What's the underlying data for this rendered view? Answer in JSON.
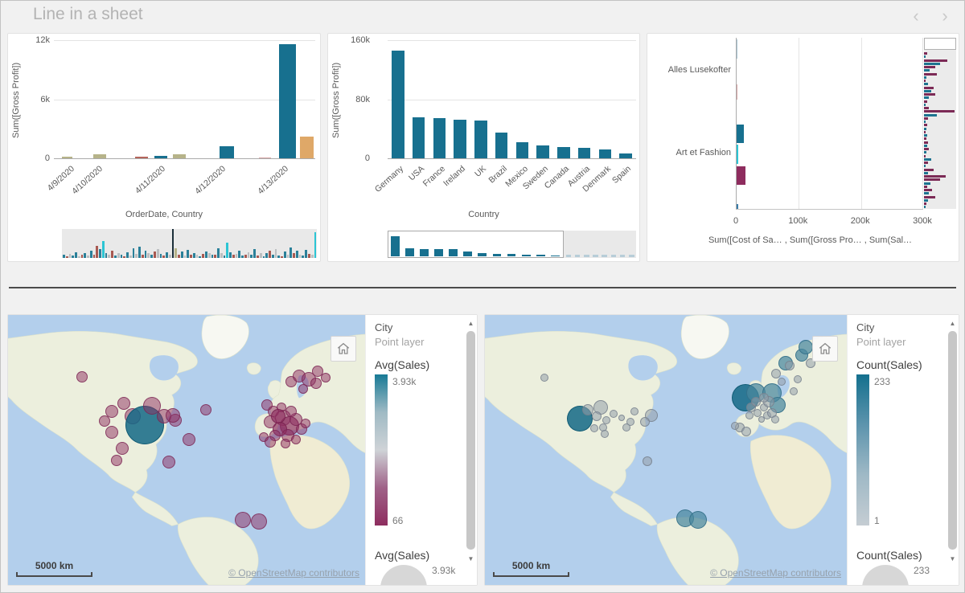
{
  "header": {
    "title": "Line in a sheet",
    "nav_prev": "‹",
    "nav_next": "›"
  },
  "colors": {
    "teal": "#17708f",
    "olive": "#b6b389",
    "red": "#b4655c",
    "pink": "#d9a7a7",
    "tan": "#dfa868",
    "cyan": "#2cc5d4",
    "magenta": "#8e2c5e",
    "steel": "#3a7ca8",
    "faded_blue": "#a9c6d4",
    "dark": "#1b2f3a",
    "gray": "#bcbfc1",
    "mm_teal": "#2a8099",
    "mm_red": "#a85a52",
    "mm_purple": "#7c2a56",
    "mm_teal3": "#1d7390"
  },
  "bubble_colors": {
    "m": {
      "fill": "rgba(142,45,96,0.5)",
      "stroke": "rgba(120,35,80,0.75)"
    },
    "M": {
      "fill": "rgba(142,45,96,0.68)",
      "stroke": "rgba(120,35,80,0.85)"
    },
    "T": {
      "fill": "rgba(20,105,134,0.85)",
      "stroke": "rgba(14,88,113,0.9)"
    },
    "t": {
      "fill": "rgba(72,134,158,0.72)",
      "stroke": "rgba(50,110,135,0.85)"
    },
    "g": {
      "fill": "rgba(148,158,170,0.55)",
      "stroke": "rgba(118,128,140,0.8)"
    }
  },
  "chart_data": [
    {
      "type": "bar",
      "title": "",
      "ylabel": "Sum([Gross Profit])",
      "xlabel": "OrderDate, Country",
      "yticks": [
        "12k",
        "6k",
        "0"
      ],
      "ylim": [
        0,
        12600
      ],
      "categories": [
        "4/9/2020",
        "4/10/2020",
        "4/11/2020",
        "4/12/2020",
        "4/13/2020"
      ],
      "category_x_pct": [
        6,
        17,
        41,
        64,
        88
      ],
      "bars": [
        {
          "x_pct": 3,
          "w_pct": 4,
          "value": 160,
          "color": "olive"
        },
        {
          "x_pct": 15,
          "w_pct": 5,
          "value": 400,
          "color": "olive"
        },
        {
          "x_pct": 31,
          "w_pct": 5,
          "value": 200,
          "color": "red"
        },
        {
          "x_pct": 38.5,
          "w_pct": 5,
          "value": 250,
          "color": "teal"
        },
        {
          "x_pct": 45.5,
          "w_pct": 5,
          "value": 400,
          "color": "olive"
        },
        {
          "x_pct": 63.5,
          "w_pct": 5.5,
          "value": 1300,
          "color": "teal"
        },
        {
          "x_pct": 78.5,
          "w_pct": 4.5,
          "value": 120,
          "color": "pink"
        },
        {
          "x_pct": 86,
          "w_pct": 6.5,
          "value": 12150,
          "color": "teal"
        },
        {
          "x_pct": 94,
          "w_pct": 5.5,
          "value": 2300,
          "color": "tan"
        }
      ],
      "minimap_bars": [
        [
          0.1,
          "mm_teal"
        ],
        [
          0.05,
          "mm_red"
        ],
        [
          0.14,
          "gray"
        ],
        [
          0.08,
          "mm_teal"
        ],
        [
          0.2,
          "mm_teal"
        ],
        [
          0.06,
          "gray"
        ],
        [
          0.12,
          "mm_red"
        ],
        [
          0.18,
          "mm_teal"
        ],
        [
          0.08,
          "gray"
        ],
        [
          0.26,
          "mm_teal"
        ],
        [
          0.1,
          "mm_red"
        ],
        [
          0.42,
          "mm_red"
        ],
        [
          0.3,
          "mm_teal"
        ],
        [
          0.58,
          "cyan"
        ],
        [
          0.16,
          "mm_teal"
        ],
        [
          0.1,
          "gray"
        ],
        [
          0.24,
          "mm_red"
        ],
        [
          0.07,
          "mm_teal"
        ],
        [
          0.18,
          "gray"
        ],
        [
          0.12,
          "mm_teal"
        ],
        [
          0.05,
          "mm_red"
        ],
        [
          0.2,
          "mm_teal"
        ],
        [
          0.09,
          "gray"
        ],
        [
          0.32,
          "mm_teal"
        ],
        [
          0.14,
          "gray"
        ],
        [
          0.4,
          "mm_teal"
        ],
        [
          0.12,
          "mm_red"
        ],
        [
          0.26,
          "mm_teal"
        ],
        [
          0.18,
          "gray"
        ],
        [
          0.1,
          "mm_teal"
        ],
        [
          0.22,
          "mm_red"
        ],
        [
          0.3,
          "gray"
        ],
        [
          0.14,
          "mm_teal"
        ],
        [
          0.08,
          "mm_red"
        ],
        [
          0.2,
          "mm_teal"
        ],
        [
          0.12,
          "gray"
        ],
        [
          1,
          "dark"
        ],
        [
          0.34,
          "olive"
        ],
        [
          0.1,
          "mm_red"
        ],
        [
          0.22,
          "mm_teal"
        ],
        [
          0.08,
          "gray"
        ],
        [
          0.28,
          "mm_teal"
        ],
        [
          0.12,
          "mm_red"
        ],
        [
          0.16,
          "mm_teal"
        ],
        [
          0.1,
          "gray"
        ],
        [
          0.06,
          "mm_teal"
        ],
        [
          0.14,
          "mm_red"
        ],
        [
          0.22,
          "mm_teal"
        ],
        [
          0.18,
          "gray"
        ],
        [
          0.1,
          "mm_teal"
        ],
        [
          0.12,
          "mm_red"
        ],
        [
          0.34,
          "mm_teal"
        ],
        [
          0.16,
          "gray"
        ],
        [
          0.08,
          "mm_teal"
        ],
        [
          0.52,
          "cyan"
        ],
        [
          0.2,
          "mm_teal"
        ],
        [
          0.1,
          "mm_red"
        ],
        [
          0.14,
          "gray"
        ],
        [
          0.24,
          "mm_teal"
        ],
        [
          0.08,
          "mm_teal"
        ],
        [
          0.12,
          "mm_red"
        ],
        [
          0.2,
          "gray"
        ],
        [
          0.1,
          "mm_teal"
        ],
        [
          0.3,
          "mm_teal"
        ],
        [
          0.08,
          "mm_red"
        ],
        [
          0.16,
          "gray"
        ],
        [
          0.06,
          "mm_teal"
        ],
        [
          0.18,
          "mm_teal"
        ],
        [
          0.26,
          "mm_red"
        ],
        [
          0.12,
          "mm_teal"
        ],
        [
          0.3,
          "gray"
        ],
        [
          0.08,
          "mm_teal"
        ],
        [
          0.05,
          "mm_red"
        ],
        [
          0.22,
          "mm_teal"
        ],
        [
          0.1,
          "gray"
        ],
        [
          0.36,
          "mm_teal"
        ],
        [
          0.18,
          "mm_red"
        ],
        [
          0.24,
          "mm_teal"
        ],
        [
          0.1,
          "gray"
        ],
        [
          0.07,
          "mm_teal"
        ],
        [
          0.28,
          "mm_teal"
        ],
        [
          0.14,
          "mm_red"
        ],
        [
          0.1,
          "gray"
        ],
        [
          0.88,
          "cyan"
        ]
      ]
    },
    {
      "type": "bar",
      "title": "",
      "ylabel": "Sum([Gross Profit])",
      "xlabel": "Country",
      "yticks": [
        "160k",
        "80k",
        "0"
      ],
      "ylim": [
        0,
        160000
      ],
      "categories": [
        "Germany",
        "USA",
        "France",
        "Ireland",
        "UK",
        "Brazil",
        "Mexico",
        "Sweden",
        "Canada",
        "Austria",
        "Denmark",
        "Spain"
      ],
      "values": [
        146000,
        56000,
        54000,
        52000,
        51000,
        35000,
        22000,
        17000,
        15500,
        14000,
        12500,
        7000
      ],
      "bar_color": "teal",
      "minimap": {
        "viewport_pct": 71,
        "faded_count": 8
      }
    },
    {
      "type": "horizontal-bar",
      "title": "",
      "xlabel": "Sum([Cost of Sa… , Sum([Gross Pro… , Sum(Sal…",
      "xticks": [
        "0",
        "100k",
        "200k",
        "300k"
      ],
      "xlim": [
        0,
        300000
      ],
      "categories": [
        "Alles Lusekofter",
        "Art et Fashion"
      ],
      "category_y_pct": [
        19,
        67
      ],
      "bars": [
        {
          "y_pct": 1,
          "h_pct": 11,
          "value": 1500,
          "color": "faded_blue"
        },
        {
          "y_pct": 27,
          "h_pct": 9,
          "value": 1300,
          "color": "pink"
        },
        {
          "y_pct": 50.5,
          "h_pct": 11,
          "value": 12000,
          "color": "teal"
        },
        {
          "y_pct": 62.5,
          "h_pct": 11,
          "value": 2600,
          "color": "cyan"
        },
        {
          "y_pct": 75,
          "h_pct": 11,
          "value": 14000,
          "color": "magenta"
        },
        {
          "y_pct": 97,
          "h_pct": 3,
          "value": 2500,
          "color": "steel"
        }
      ],
      "minimap_bars": [
        [
          0.1,
          "mm_purple"
        ],
        [
          0.06,
          "mm_teal3"
        ],
        [
          0.72,
          "mm_purple"
        ],
        [
          0.5,
          "mm_teal3"
        ],
        [
          0.34,
          "mm_purple"
        ],
        [
          0.18,
          "mm_teal3"
        ],
        [
          0.4,
          "mm_purple"
        ],
        [
          0.08,
          "mm_teal3"
        ],
        [
          0.05,
          "mm_purple"
        ],
        [
          0.12,
          "mm_teal3"
        ],
        [
          0.3,
          "mm_purple"
        ],
        [
          0.22,
          "mm_teal3"
        ],
        [
          0.36,
          "mm_purple"
        ],
        [
          0.16,
          "mm_teal3"
        ],
        [
          0.1,
          "mm_purple"
        ],
        [
          0.06,
          "mm_teal3"
        ],
        [
          0.14,
          "mm_purple"
        ],
        [
          0.95,
          "mm_purple"
        ],
        [
          0.4,
          "mm_teal3"
        ],
        [
          0.12,
          "mm_purple"
        ],
        [
          0.05,
          "mm_teal3"
        ],
        [
          0.1,
          "mm_purple"
        ],
        [
          0.07,
          "mm_teal3"
        ],
        [
          0.04,
          "mm_purple"
        ],
        [
          0.1,
          "mm_teal3"
        ],
        [
          0.08,
          "mm_purple"
        ],
        [
          0.13,
          "mm_purple"
        ],
        [
          0.1,
          "mm_teal3"
        ],
        [
          0.16,
          "mm_purple"
        ],
        [
          0.08,
          "mm_teal3"
        ],
        [
          0.05,
          "mm_purple"
        ],
        [
          0.22,
          "mm_teal3"
        ],
        [
          0.12,
          "mm_purple"
        ],
        [
          0.05,
          "mm_teal3"
        ],
        [
          0.3,
          "mm_purple"
        ],
        [
          0.12,
          "mm_teal3"
        ],
        [
          0.68,
          "mm_purple"
        ],
        [
          0.5,
          "mm_purple"
        ],
        [
          0.2,
          "mm_teal3"
        ],
        [
          0.1,
          "mm_purple"
        ],
        [
          0.26,
          "mm_purple"
        ],
        [
          0.16,
          "mm_teal3"
        ],
        [
          0.36,
          "mm_purple"
        ],
        [
          0.12,
          "mm_teal3"
        ],
        [
          0.08,
          "mm_purple"
        ],
        [
          0.05,
          "mm_teal3"
        ]
      ]
    }
  ],
  "maps": [
    {
      "legend": {
        "layer": "City",
        "layer_type": "Point layer",
        "color_measure": "Avg(Sales)",
        "max": "3.93k",
        "min": "66",
        "size_measure": "Avg(Sales)",
        "size_value": "3.93k"
      },
      "scale_label": "5000 km",
      "attribution": "© OpenStreetMap contributors",
      "gradient": [
        "#187a95",
        "#9fbac4",
        "#cfd3d7",
        "#a06288",
        "#8e2d5f"
      ],
      "bubbles": [
        [
          92,
          77,
          7,
          "m"
        ],
        [
          120,
          132,
          7,
          "m"
        ],
        [
          129,
          120,
          8,
          "m"
        ],
        [
          144,
          110,
          8,
          "m"
        ],
        [
          155,
          126,
          10,
          "m"
        ],
        [
          170,
          137,
          24,
          "T"
        ],
        [
          179,
          113,
          11,
          "m"
        ],
        [
          194,
          126,
          9,
          "m"
        ],
        [
          208,
          131,
          8,
          "m"
        ],
        [
          129,
          146,
          8,
          "m"
        ],
        [
          142,
          166,
          8,
          "m"
        ],
        [
          135,
          181,
          7,
          "m"
        ],
        [
          225,
          155,
          8,
          "m"
        ],
        [
          205,
          125,
          9,
          "m"
        ],
        [
          246,
          118,
          7,
          "m"
        ],
        [
          200,
          183,
          8,
          "m"
        ],
        [
          292,
          255,
          10,
          "m"
        ],
        [
          312,
          257,
          10,
          "m"
        ],
        [
          322,
          112,
          7,
          "m"
        ],
        [
          330,
          120,
          7,
          "m"
        ],
        [
          342,
          128,
          10,
          "m"
        ],
        [
          350,
          138,
          12,
          "M"
        ],
        [
          338,
          142,
          9,
          "M"
        ],
        [
          358,
          130,
          8,
          "m"
        ],
        [
          365,
          142,
          7,
          "m"
        ],
        [
          348,
          150,
          8,
          "m"
        ],
        [
          332,
          150,
          7,
          "m"
        ],
        [
          358,
          155,
          6,
          "m"
        ],
        [
          345,
          160,
          6,
          "m"
        ],
        [
          370,
          135,
          6,
          "m"
        ],
        [
          340,
          115,
          6,
          "m"
        ],
        [
          326,
          133,
          8,
          "m"
        ],
        [
          352,
          120,
          7,
          "m"
        ],
        [
          336,
          126,
          9,
          "M"
        ],
        [
          352,
          83,
          7,
          "m"
        ],
        [
          362,
          76,
          8,
          "m"
        ],
        [
          374,
          80,
          9,
          "m"
        ],
        [
          383,
          85,
          7,
          "m"
        ],
        [
          367,
          92,
          6,
          "m"
        ],
        [
          318,
          152,
          6,
          "m"
        ],
        [
          326,
          158,
          7,
          "m"
        ],
        [
          385,
          70,
          7,
          "m"
        ],
        [
          395,
          78,
          6,
          "m"
        ]
      ]
    },
    {
      "legend": {
        "layer": "City",
        "layer_type": "Point layer",
        "color_measure": "Count(Sales)",
        "max": "233",
        "min": "1",
        "size_measure": "Count(Sales)",
        "size_value": "233"
      },
      "scale_label": "5000 km",
      "attribution": "© OpenStreetMap contributors",
      "gradient": [
        "#14708e",
        "#5d94ad",
        "#9fb9c6",
        "#c5cdd3"
      ],
      "bubbles": [
        [
          74,
          78,
          5,
          "g"
        ],
        [
          118,
          129,
          16,
          "T"
        ],
        [
          144,
          115,
          9,
          "g"
        ],
        [
          139,
          126,
          6,
          "g"
        ],
        [
          151,
          131,
          5,
          "g"
        ],
        [
          136,
          141,
          5,
          "g"
        ],
        [
          128,
          118,
          7,
          "g"
        ],
        [
          147,
          140,
          5,
          "g"
        ],
        [
          160,
          123,
          5,
          "g"
        ],
        [
          181,
          133,
          5,
          "g"
        ],
        [
          149,
          148,
          5,
          "g"
        ],
        [
          170,
          128,
          4,
          "g"
        ],
        [
          207,
          125,
          8,
          "g"
        ],
        [
          199,
          133,
          6,
          "g"
        ],
        [
          202,
          182,
          6,
          "g"
        ],
        [
          249,
          253,
          11,
          "t"
        ],
        [
          265,
          255,
          11,
          "t"
        ],
        [
          324,
          103,
          17,
          "T"
        ],
        [
          337,
          97,
          12,
          "t"
        ],
        [
          357,
          97,
          12,
          "t"
        ],
        [
          364,
          112,
          10,
          "t"
        ],
        [
          331,
          115,
          6,
          "g"
        ],
        [
          339,
          122,
          5,
          "g"
        ],
        [
          347,
          115,
          5,
          "g"
        ],
        [
          337,
          108,
          6,
          "g"
        ],
        [
          351,
          125,
          5,
          "g"
        ],
        [
          344,
          130,
          4,
          "g"
        ],
        [
          357,
          122,
          6,
          "g"
        ],
        [
          329,
          125,
          5,
          "g"
        ],
        [
          361,
          130,
          5,
          "g"
        ],
        [
          353,
          108,
          7,
          "g"
        ],
        [
          347,
          103,
          6,
          "g"
        ],
        [
          317,
          140,
          6,
          "g"
        ],
        [
          325,
          145,
          6,
          "g"
        ],
        [
          311,
          138,
          5,
          "g"
        ],
        [
          374,
          60,
          9,
          "t"
        ],
        [
          362,
          73,
          6,
          "g"
        ],
        [
          369,
          83,
          5,
          "g"
        ],
        [
          379,
          63,
          6,
          "g"
        ],
        [
          389,
          80,
          5,
          "g"
        ],
        [
          394,
          50,
          8,
          "t"
        ],
        [
          399,
          40,
          9,
          "t"
        ],
        [
          384,
          95,
          5,
          "g"
        ],
        [
          405,
          60,
          6,
          "g"
        ],
        [
          186,
          120,
          5,
          "g"
        ],
        [
          176,
          140,
          5,
          "g"
        ]
      ]
    }
  ]
}
